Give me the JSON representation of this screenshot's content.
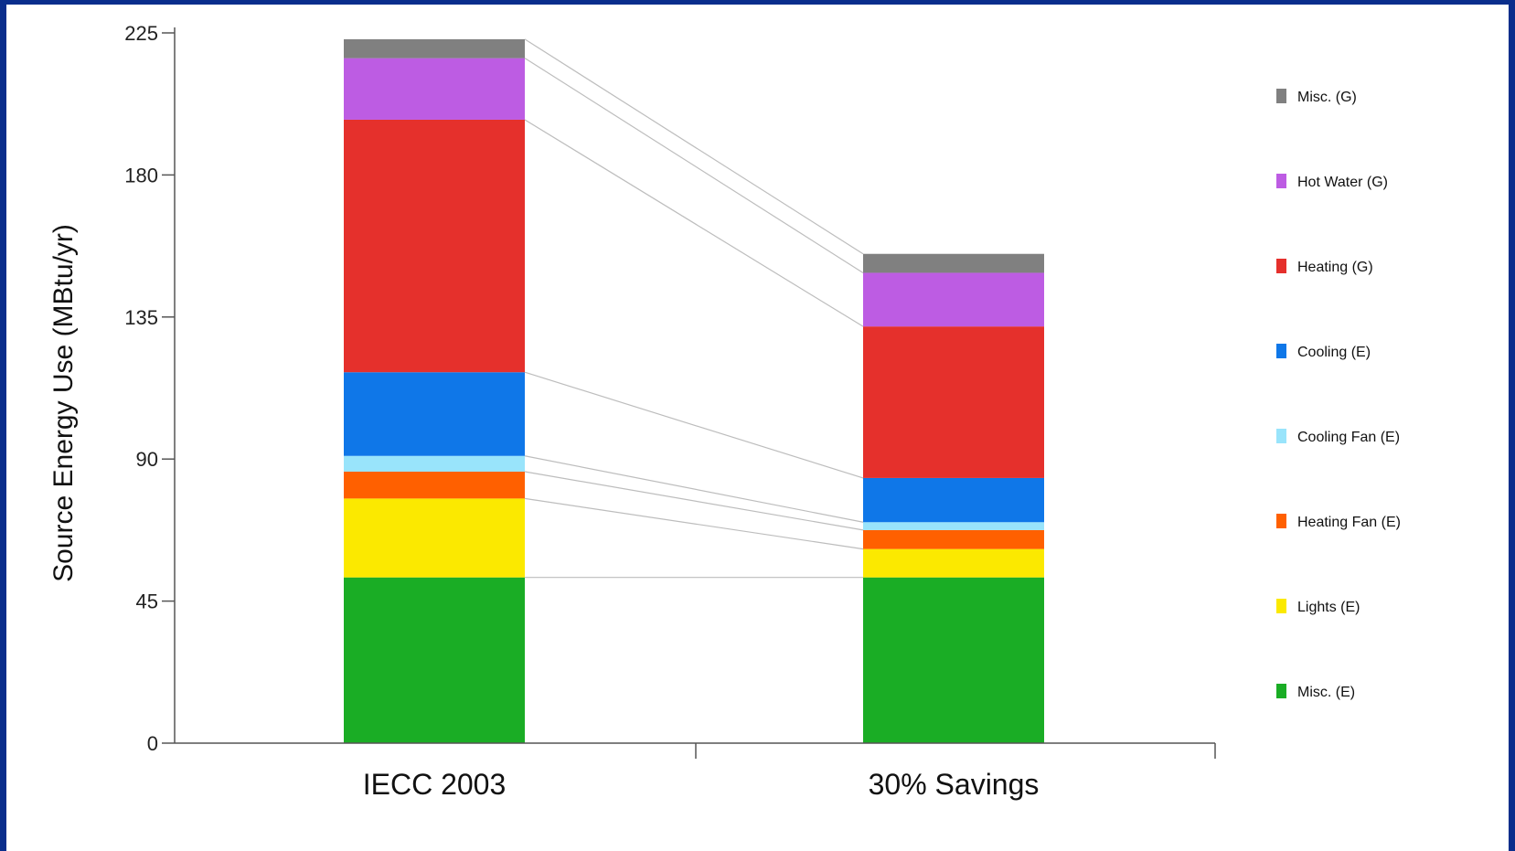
{
  "chart_data": {
    "type": "bar",
    "stacked": true,
    "title": "",
    "xlabel": "",
    "ylabel": "Source Energy Use (MBtu/yr)",
    "ylim": [
      0,
      225
    ],
    "yticks": [
      0,
      45,
      90,
      135,
      180,
      225
    ],
    "categories": [
      "IECC 2003",
      "30% Savings"
    ],
    "series": [
      {
        "name": "Misc. (E)",
        "color": "#1aad25",
        "values": [
          52.5,
          52.5
        ]
      },
      {
        "name": "Lights (E)",
        "color": "#fbe900",
        "values": [
          25,
          9
        ]
      },
      {
        "name": "Heating Fan (E)",
        "color": "#ff6000",
        "values": [
          8.5,
          6
        ]
      },
      {
        "name": "Cooling Fan (E)",
        "color": "#99e4fb",
        "values": [
          5,
          2.5
        ]
      },
      {
        "name": "Cooling (E)",
        "color": "#0f77e8",
        "values": [
          26.5,
          14
        ]
      },
      {
        "name": "Heating (G)",
        "color": "#e5302c",
        "values": [
          80,
          48
        ]
      },
      {
        "name": "Hot Water (G)",
        "color": "#bd5ce3",
        "values": [
          19.5,
          17
        ]
      },
      {
        "name": "Misc. (G)",
        "color": "#808080",
        "values": [
          6,
          6
        ]
      }
    ],
    "connector_lines": true,
    "grid": false,
    "legend_position": "right"
  }
}
